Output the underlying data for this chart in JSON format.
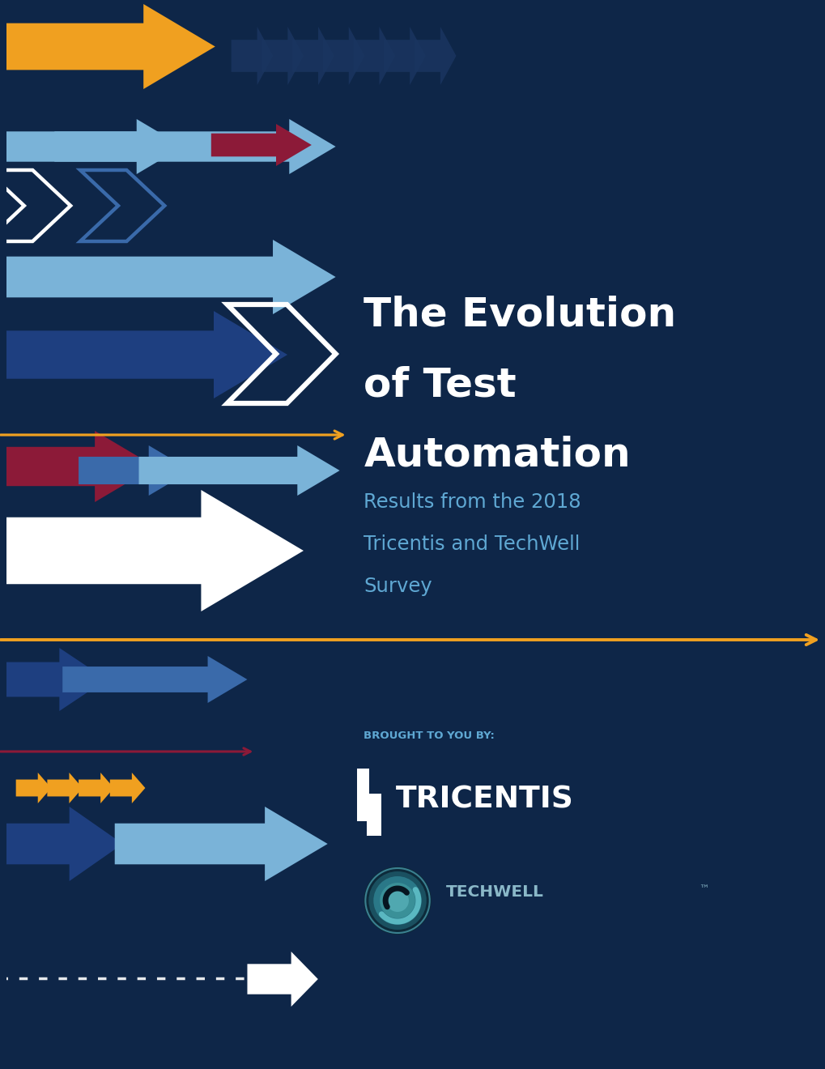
{
  "bg_color": "#0e2648",
  "title_lines": [
    "The Evolution",
    "of Test",
    "Automation"
  ],
  "subtitle_lines": [
    "Results from the 2018",
    "Tricentis and TechWell",
    "Survey"
  ],
  "brought_by": "BROUGHT TO YOU BY:",
  "title_color": "#ffffff",
  "subtitle_color": "#5fa8d3",
  "brought_by_color": "#5fa8d3",
  "orange": "#f0a020",
  "crimson": "#8c1a38",
  "white": "#ffffff",
  "light_blue": "#7ab3d8",
  "steel_blue": "#3a6aaa",
  "dark_blue": "#1e3f80",
  "medium_blue": "#2a5590",
  "pale_blue": "#b0cce0",
  "teal": "#3a8090",
  "techwell_text": "#8ab8c8",
  "tricentis_text": "#ffffff"
}
